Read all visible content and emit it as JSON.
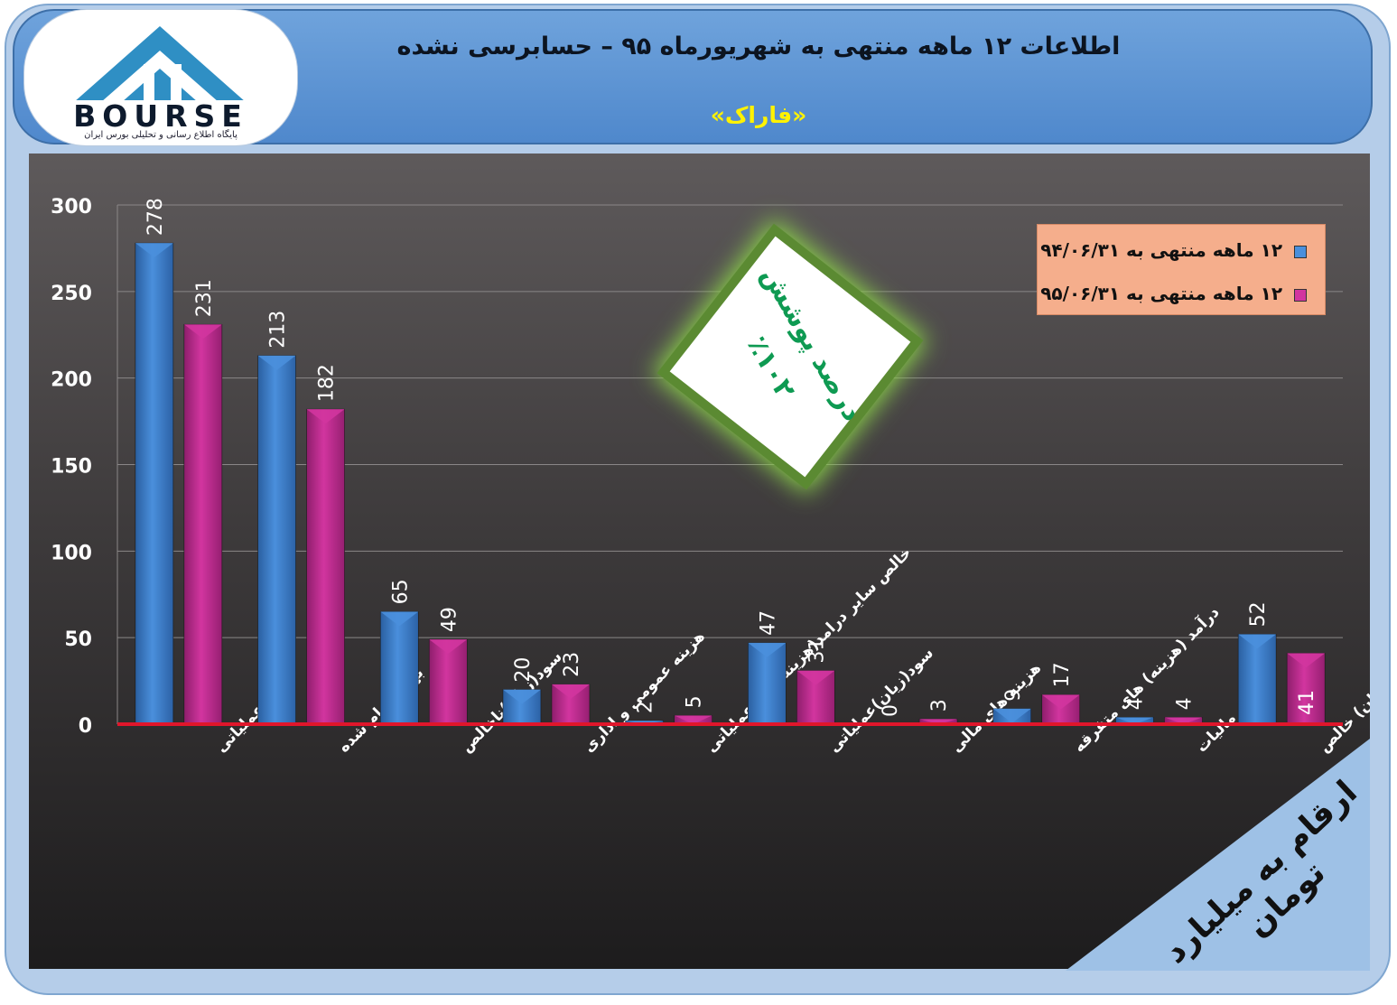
{
  "header": {
    "title": "اطلاعات ۱۲ ماهه منتهی به شهریورماه ۹۵ – حسابرسی نشده",
    "company": "«فاراک»"
  },
  "logo": {
    "text": "BOURSE",
    "subtitle": "پایگاه اطلاع رسانی و تحلیلی بورس ایران"
  },
  "coverage_badge": {
    "line1": "درصد پوشش",
    "line2": "٪۱۰۲"
  },
  "unit_note": "ارقام به میلیارد تومان",
  "colors": {
    "series1": "#4a8fdc",
    "series2": "#d2359f",
    "baseline": "#e0162b",
    "legend_bg": "#f5ae8c",
    "badge_text": "#0e9a52"
  },
  "chart_data": {
    "type": "bar",
    "categories": [
      "درآمد عملیاتی",
      "بهای تمام شده",
      "سود(زیان)ناخالص",
      "هزینه عمومی و اداری",
      "خالص سایر درامد(هزینه)های عملیاتی",
      "سود(زیان)عملیاتی",
      "هزینه های مالی",
      "درآمد (هزینه) های متفرقه",
      "مالیات",
      "سود(زیان) خالص"
    ],
    "series": [
      {
        "name": "۱۲ ماهه منتهی به ۹۴/۰۶/۳۱",
        "values": [
          278,
          213,
          65,
          20,
          2,
          47,
          0,
          9,
          4,
          52
        ]
      },
      {
        "name": "۱۲ ماهه منتهی به ۹۵/۰۶/۳۱",
        "values": [
          231,
          182,
          49,
          23,
          5,
          31,
          3,
          17,
          4,
          41
        ]
      }
    ],
    "yticks": [
      0,
      50,
      100,
      150,
      200,
      250,
      300
    ],
    "ylim": [
      0,
      300
    ],
    "grid": true,
    "legend_position": "top-right"
  }
}
